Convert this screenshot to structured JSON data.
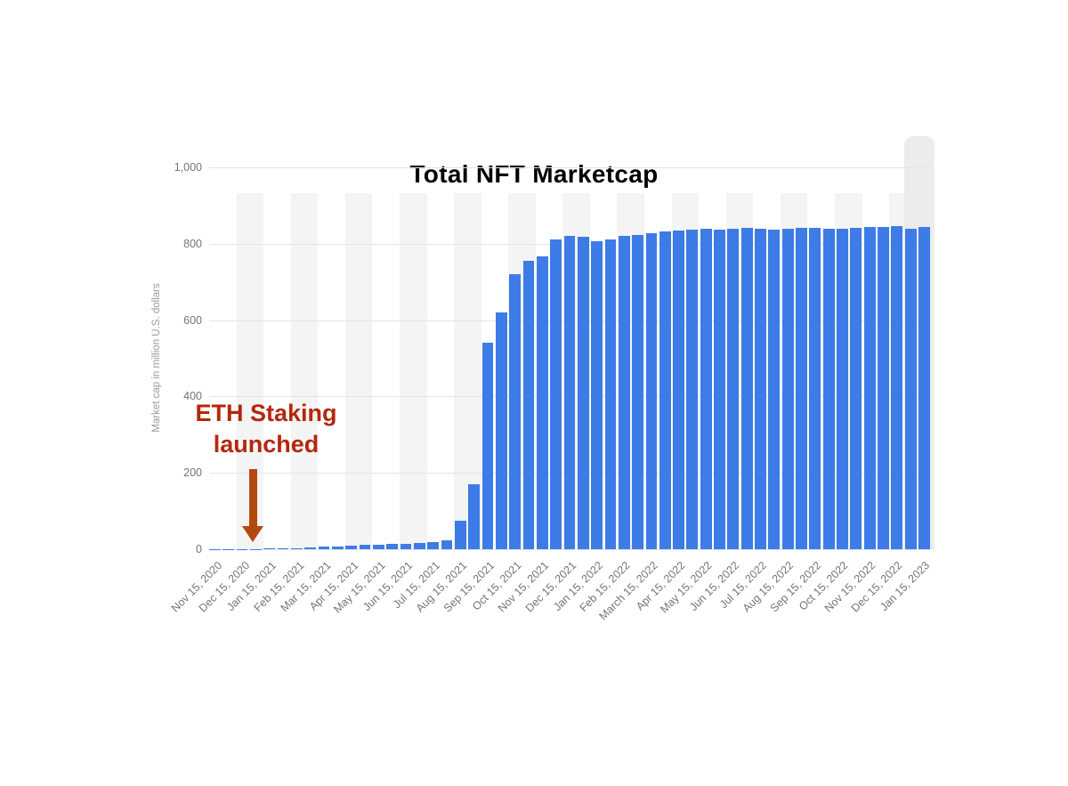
{
  "page": {
    "background": "#ffffff"
  },
  "chart_data": {
    "type": "bar",
    "title": "Total NFT Marketcap",
    "ylabel": "Market cap in million U.S. dollars",
    "xlabel": "",
    "ylim": [
      0,
      1000
    ],
    "yticks": [
      0,
      200,
      400,
      600,
      800,
      1000
    ],
    "ytick_labels": [
      "0",
      "200",
      "400",
      "600",
      "800",
      "1,000"
    ],
    "grid": "horizontal",
    "legend": "none",
    "background_stripes": true,
    "ticks_every_n_bars": 2,
    "x_tick_labels": [
      "Nov 15, 2020",
      "Dec 15, 2020",
      "Jan 15, 2021",
      "Feb 15, 2021",
      "Mar 15, 2021",
      "Apr 15, 2021",
      "May 15, 2021",
      "Jun 15, 2021",
      "Jul 15, 2021",
      "Aug 15, 2021",
      "Sep 15, 2021",
      "Oct 15, 2021",
      "Nov 15, 2021",
      "Dec 15, 2021",
      "Jan 15, 2022",
      "Feb 15, 2022",
      "March 15, 2022",
      "Apr 15, 2022",
      "May 15, 2022",
      "Jun 15, 2022",
      "Jul 15, 2022",
      "Aug 15, 2022",
      "Sep 15, 2022",
      "Oct 15, 2022",
      "Nov 15, 2022",
      "Dec 15, 2022",
      "Jan 15, 2023"
    ],
    "values": [
      0.5,
      0.5,
      1,
      1,
      2,
      2,
      3,
      5,
      6,
      8,
      10,
      11,
      12,
      13,
      14,
      16,
      19,
      24,
      75,
      170,
      540,
      620,
      720,
      755,
      768,
      812,
      820,
      818,
      806,
      812,
      820,
      824,
      828,
      832,
      835,
      838,
      840,
      838,
      840,
      841,
      839,
      837,
      840,
      842,
      841,
      839,
      840,
      842,
      843,
      845,
      846,
      839,
      843
    ],
    "bar_color": "#3d7ce6",
    "stripe_color": "#f4f4f4",
    "highlight_color": "#ececec",
    "gridline_color": "#e4e4e4",
    "tick_text_color": "#757575",
    "annotation": {
      "line1": "ETH Staking",
      "line2": "launched",
      "text_color": "#b4270e",
      "arrow_color": "#b2490f",
      "arrow_points_to": "Dec 15, 2020"
    }
  }
}
